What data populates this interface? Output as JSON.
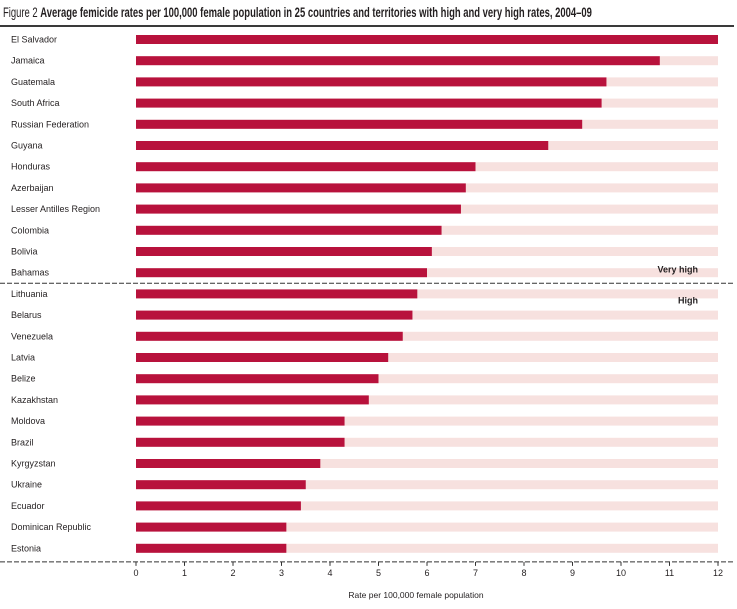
{
  "title": {
    "figure_label": "Figure 2",
    "text": "Average femicide rates per 100,000 female population in 25 countries and territories with high and very high rates, 2004–09"
  },
  "colors": {
    "bar": "#b8123c",
    "track": "#f7e1df",
    "rule": "#333333"
  },
  "chart_data": {
    "type": "bar",
    "orientation": "horizontal",
    "title": "Average femicide rates per 100,000 female population in 25 countries and territories with high and very high rates, 2004–09",
    "xlabel": "Rate per 100,000 female population",
    "ylabel": "",
    "xlim": [
      0,
      12
    ],
    "xticks": [
      "0",
      "1",
      "2",
      "3",
      "4",
      "5",
      "6",
      "7",
      "8",
      "9",
      "10",
      "11",
      "12"
    ],
    "grid": false,
    "categories": [
      "El Salvador",
      "Jamaica",
      "Guatemala",
      "South Africa",
      "Russian Federation",
      "Guyana",
      "Honduras",
      "Azerbaijan",
      "Lesser Antilles Region",
      "Colombia",
      "Bolivia",
      "Bahamas",
      "Lithuania",
      "Belarus",
      "Venezuela",
      "Latvia",
      "Belize",
      "Kazakhstan",
      "Moldova",
      "Brazil",
      "Kyrgyzstan",
      "Ukraine",
      "Ecuador",
      "Dominican Republic",
      "Estonia"
    ],
    "values": [
      12.0,
      10.8,
      9.7,
      9.6,
      9.2,
      8.5,
      7.0,
      6.8,
      6.7,
      6.3,
      6.1,
      6.0,
      5.8,
      5.7,
      5.5,
      5.2,
      5.0,
      4.8,
      4.3,
      4.3,
      3.8,
      3.5,
      3.4,
      3.1,
      3.1
    ],
    "groups": [
      {
        "name": "Very high",
        "count": 12
      },
      {
        "name": "High",
        "count": 13
      }
    ]
  }
}
